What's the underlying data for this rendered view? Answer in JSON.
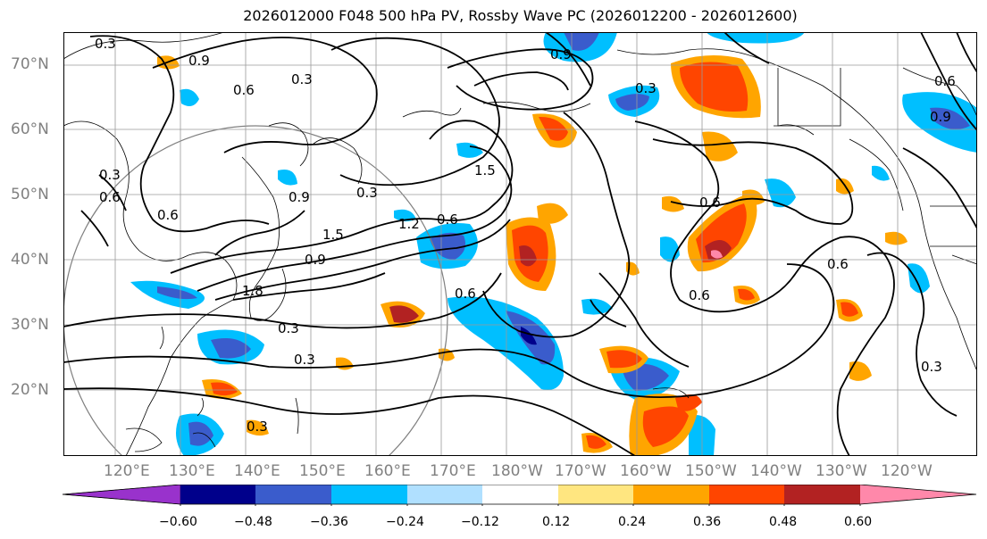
{
  "title": "2026012000 F048 500 hPa PV, Rossby Wave PC (2026012200 - 2026012600)",
  "lat_labels": [
    "70°N",
    "60°N",
    "50°N",
    "40°N",
    "30°N",
    "20°N"
  ],
  "lon_labels": [
    "120°E",
    "130°E",
    "140°E",
    "150°E",
    "160°E",
    "170°E",
    "180°W",
    "170°W",
    "160°W",
    "150°W",
    "140°W",
    "130°W",
    "120°W"
  ],
  "contour_labels": [
    "0.3",
    "0.9",
    "0.6",
    "0.3",
    "0.9",
    "0.3",
    "0.6",
    "0.9",
    "0.9",
    "0.3",
    "1.5",
    "0.6",
    "0.9",
    "1.5",
    "1.2",
    "0.6",
    "1.8",
    "0.6",
    "0.3",
    "0.3",
    "0.3",
    "0.6",
    "0.6",
    "0.6",
    "0.6",
    "0.3",
    "0.3"
  ],
  "colorbar": {
    "ticks": [
      "−0.60",
      "−0.48",
      "−0.36",
      "−0.24",
      "−0.12",
      "0.12",
      "0.24",
      "0.36",
      "0.48",
      "0.60"
    ],
    "colors": [
      "#9932cc",
      "#00008b",
      "#3a5ccc",
      "#00bfff",
      "#b0e0ff",
      "#ffffff",
      "#ffe680",
      "#ffa500",
      "#ff4500",
      "#b22222",
      "#ff88aa"
    ]
  },
  "colors": {
    "land_outline": "#000000",
    "grid": "#9a9a9a",
    "axis_label": "#808080",
    "contour": "#000000"
  }
}
